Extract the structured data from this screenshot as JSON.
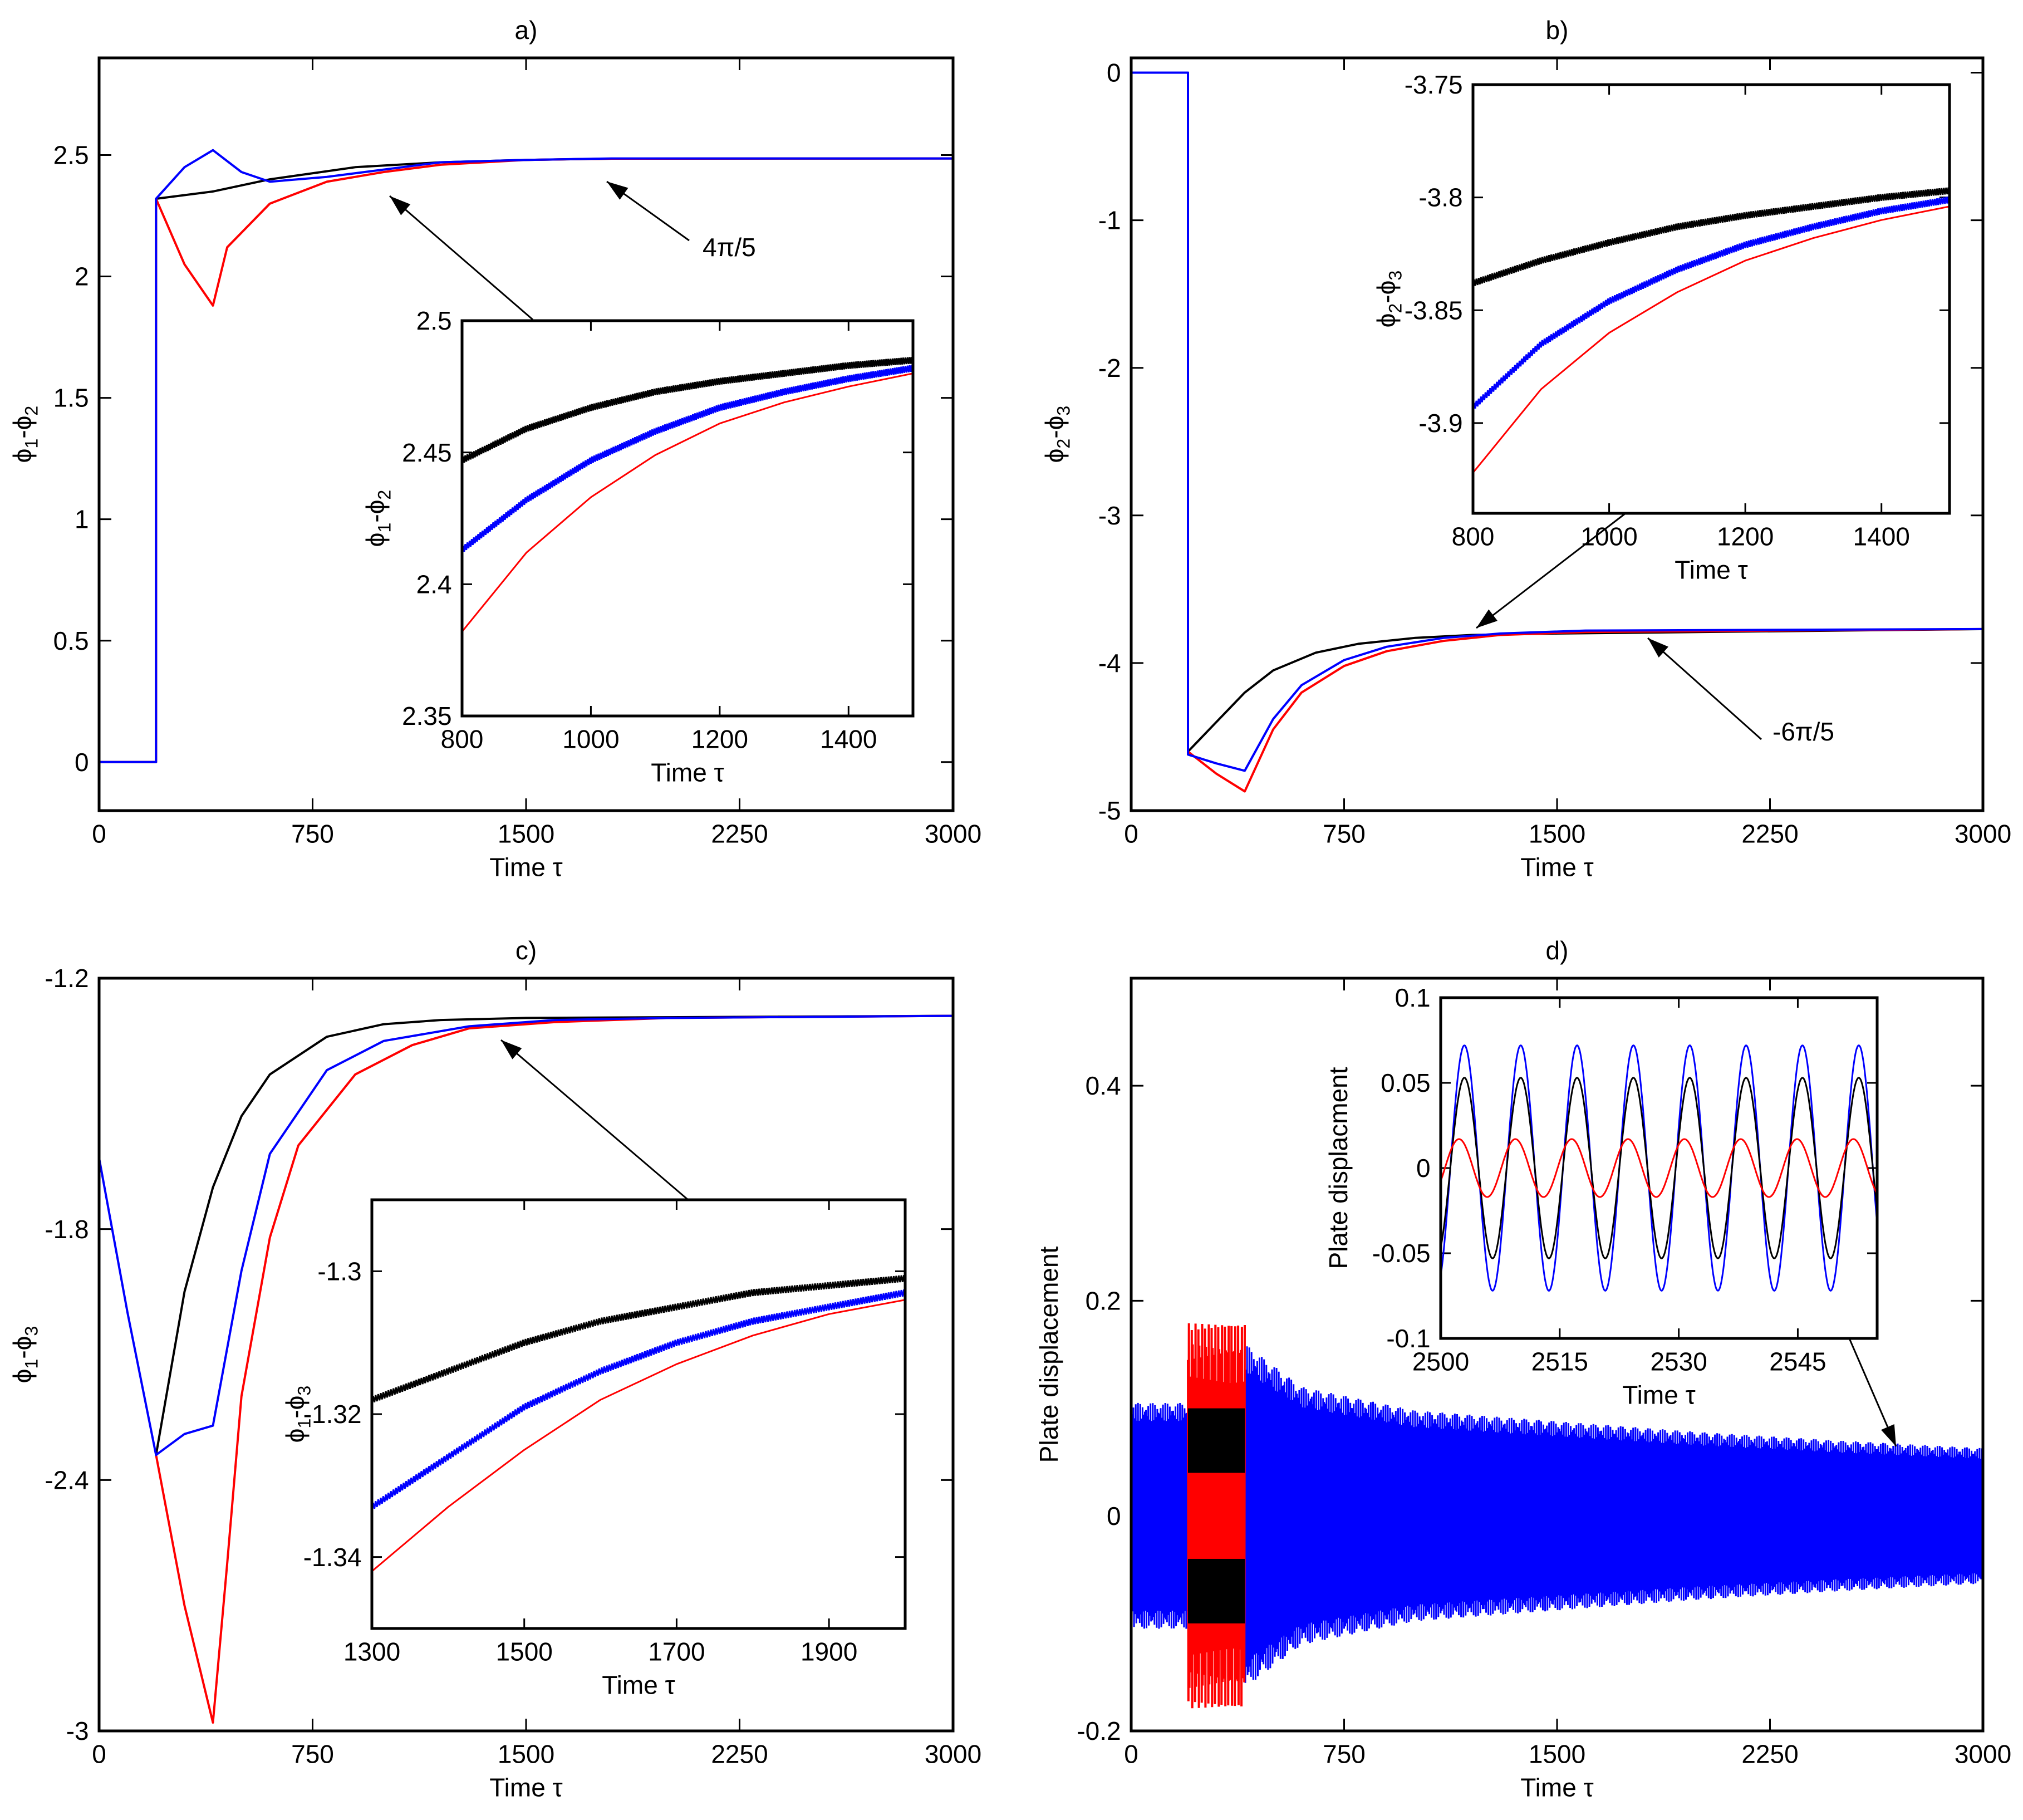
{
  "colors": {
    "black": "#000000",
    "blue": "#0000ff",
    "red": "#ff0000"
  },
  "chart_data": [
    {
      "id": "a",
      "type": "line",
      "title": "a)",
      "xlabel": "Time τ",
      "ylabel_base": "ϕ",
      "ylabel_subs": [
        "1",
        "2"
      ],
      "xlim": [
        0,
        3000
      ],
      "ylim": [
        -0.2,
        2.9
      ],
      "xticks": [
        "0",
        "750",
        "1500",
        "2250",
        "3000"
      ],
      "xtick_values": [
        0,
        750,
        1500,
        2250,
        3000
      ],
      "yticks": [
        "0",
        "0.5",
        "1",
        "1.5",
        "2",
        "2.5"
      ],
      "ytick_values": [
        0,
        0.5,
        1,
        1.5,
        2,
        2.5
      ],
      "series": [
        {
          "name": "black",
          "color": "#000000",
          "x": [
            0,
            200,
            200,
            400,
            600,
            900,
            1200,
            1500,
            1800,
            3000
          ],
          "y": [
            0,
            0,
            2.32,
            2.35,
            2.4,
            2.45,
            2.47,
            2.48,
            2.485,
            2.486
          ]
        },
        {
          "name": "red",
          "color": "#ff0000",
          "x": [
            0,
            200,
            200,
            300,
            400,
            450,
            600,
            800,
            1000,
            1200,
            1500,
            1800,
            3000
          ],
          "y": [
            0,
            0,
            2.32,
            2.05,
            1.88,
            2.12,
            2.3,
            2.39,
            2.43,
            2.46,
            2.48,
            2.485,
            2.486
          ]
        },
        {
          "name": "blue",
          "color": "#0000ff",
          "x": [
            0,
            200,
            200,
            300,
            400,
            500,
            600,
            800,
            1000,
            1200,
            1500,
            1800,
            3000
          ],
          "y": [
            0,
            0,
            2.32,
            2.45,
            2.52,
            2.43,
            2.39,
            2.41,
            2.44,
            2.47,
            2.48,
            2.486,
            2.486
          ]
        }
      ],
      "annotations": [
        {
          "text": "4π/5",
          "value": "2π/5 × 2"
        }
      ],
      "inset": {
        "xlabel": "Time τ",
        "ylabel_base": "ϕ",
        "ylabel_subs": [
          "1",
          "2"
        ],
        "xlim": [
          800,
          1500
        ],
        "ylim": [
          2.35,
          2.5
        ],
        "xticks": [
          "800",
          "1000",
          "1200",
          "1400"
        ],
        "xtick_values": [
          800,
          1000,
          1200,
          1400
        ],
        "yticks": [
          "2.35",
          "2.4",
          "2.45",
          "2.5"
        ],
        "ytick_values": [
          2.35,
          2.4,
          2.45,
          2.5
        ],
        "series": [
          {
            "name": "black",
            "color": "#000000",
            "thick": true,
            "x": [
              800,
              900,
              1000,
              1100,
              1200,
              1300,
              1400,
              1500
            ],
            "y": [
              2.447,
              2.459,
              2.467,
              2.473,
              2.477,
              2.48,
              2.483,
              2.485
            ]
          },
          {
            "name": "blue",
            "color": "#0000ff",
            "thick": true,
            "x": [
              800,
              900,
              1000,
              1100,
              1200,
              1300,
              1400,
              1500
            ],
            "y": [
              2.413,
              2.432,
              2.447,
              2.458,
              2.467,
              2.473,
              2.478,
              2.482
            ]
          },
          {
            "name": "red",
            "color": "#ff0000",
            "thick": false,
            "x": [
              800,
              900,
              1000,
              1100,
              1200,
              1300,
              1400,
              1500
            ],
            "y": [
              2.382,
              2.412,
              2.433,
              2.449,
              2.461,
              2.469,
              2.475,
              2.48
            ]
          }
        ]
      }
    },
    {
      "id": "b",
      "type": "line",
      "title": "b)",
      "xlabel": "Time τ",
      "ylabel_base": "ϕ",
      "ylabel_subs": [
        "2",
        "3"
      ],
      "xlim": [
        0,
        3000
      ],
      "ylim": [
        -5,
        0.1
      ],
      "xticks": [
        "0",
        "750",
        "1500",
        "2250",
        "3000"
      ],
      "xtick_values": [
        0,
        750,
        1500,
        2250,
        3000
      ],
      "yticks": [
        "-5",
        "-4",
        "-3",
        "-2",
        "-1",
        "0"
      ],
      "ytick_values": [
        -5,
        -4,
        -3,
        -2,
        -1,
        0
      ],
      "series": [
        {
          "name": "black",
          "color": "#000000",
          "x": [
            0,
            200,
            200,
            300,
            400,
            500,
            650,
            800,
            1000,
            1200,
            1500,
            3000
          ],
          "y": [
            0,
            0,
            -4.6,
            -4.4,
            -4.2,
            -4.05,
            -3.93,
            -3.87,
            -3.83,
            -3.81,
            -3.8,
            -3.77
          ]
        },
        {
          "name": "red",
          "color": "#ff0000",
          "x": [
            0,
            200,
            200,
            300,
            400,
            500,
            600,
            750,
            900,
            1100,
            1300,
            1600,
            3000
          ],
          "y": [
            0,
            0,
            -4.6,
            -4.75,
            -4.87,
            -4.45,
            -4.2,
            -4.02,
            -3.92,
            -3.85,
            -3.81,
            -3.79,
            -3.77
          ]
        },
        {
          "name": "blue",
          "color": "#0000ff",
          "x": [
            0,
            200,
            200,
            300,
            400,
            500,
            600,
            750,
            900,
            1100,
            1300,
            1600,
            3000
          ],
          "y": [
            0,
            0,
            -4.62,
            -4.68,
            -4.73,
            -4.38,
            -4.15,
            -3.98,
            -3.89,
            -3.83,
            -3.8,
            -3.78,
            -3.77
          ]
        }
      ],
      "annotations": [
        {
          "text": "-6π/5"
        }
      ],
      "inset": {
        "xlabel": "Time τ",
        "ylabel_base": "ϕ",
        "ylabel_subs": [
          "2",
          "3"
        ],
        "xlim": [
          800,
          1500
        ],
        "ylim": [
          -3.94,
          -3.75
        ],
        "xticks": [
          "800",
          "1000",
          "1200",
          "1400"
        ],
        "xtick_values": [
          800,
          1000,
          1200,
          1400
        ],
        "yticks": [
          "-3.9",
          "-3.85",
          "-3.8",
          "-3.75"
        ],
        "ytick_values": [
          -3.9,
          -3.85,
          -3.8,
          -3.75
        ],
        "series": [
          {
            "name": "black",
            "color": "#000000",
            "thick": true,
            "x": [
              800,
              900,
              1000,
              1100,
              1200,
              1300,
              1400,
              1500
            ],
            "y": [
              -3.838,
              -3.828,
              -3.82,
              -3.813,
              -3.808,
              -3.804,
              -3.8,
              -3.797
            ]
          },
          {
            "name": "blue",
            "color": "#0000ff",
            "thick": true,
            "x": [
              800,
              900,
              1000,
              1100,
              1200,
              1300,
              1400,
              1500
            ],
            "y": [
              -3.893,
              -3.865,
              -3.846,
              -3.832,
              -3.821,
              -3.813,
              -3.806,
              -3.801
            ]
          },
          {
            "name": "red",
            "color": "#ff0000",
            "thick": false,
            "x": [
              800,
              900,
              1000,
              1100,
              1200,
              1300,
              1400,
              1500
            ],
            "y": [
              -3.922,
              -3.885,
              -3.86,
              -3.842,
              -3.828,
              -3.818,
              -3.81,
              -3.804
            ]
          }
        ]
      }
    },
    {
      "id": "c",
      "type": "line",
      "title": "c)",
      "xlabel": "Time τ",
      "ylabel_base": "ϕ",
      "ylabel_subs": [
        "1",
        "3"
      ],
      "xlim": [
        0,
        3000
      ],
      "ylim": [
        -3,
        -1.2
      ],
      "xticks": [
        "0",
        "750",
        "1500",
        "2250",
        "3000"
      ],
      "xtick_values": [
        0,
        750,
        1500,
        2250,
        3000
      ],
      "yticks": [
        "-3",
        "-2.4",
        "-1.8",
        "-1.2"
      ],
      "ytick_values": [
        -3,
        -2.4,
        -1.8,
        -1.2
      ],
      "series": [
        {
          "name": "black",
          "color": "#000000",
          "x": [
            200,
            300,
            400,
            500,
            600,
            800,
            1000,
            1200,
            1500,
            3000
          ],
          "y": [
            -2.34,
            -1.95,
            -1.7,
            -1.53,
            -1.43,
            -1.34,
            -1.31,
            -1.3,
            -1.295,
            -1.29
          ]
        },
        {
          "name": "red",
          "color": "#ff0000",
          "x": [
            200,
            300,
            400,
            450,
            500,
            600,
            700,
            900,
            1100,
            1300,
            1600,
            2000,
            3000
          ],
          "y": [
            -2.34,
            -2.7,
            -2.98,
            -2.6,
            -2.2,
            -1.82,
            -1.6,
            -1.43,
            -1.36,
            -1.32,
            -1.305,
            -1.295,
            -1.29
          ]
        },
        {
          "name": "blue",
          "color": "#0000ff",
          "x": [
            0,
            100,
            200,
            300,
            400,
            500,
            600,
            800,
            1000,
            1300,
            1600,
            2000,
            3000
          ],
          "y": [
            -1.63,
            -2.0,
            -2.34,
            -2.29,
            -2.27,
            -1.9,
            -1.62,
            -1.42,
            -1.35,
            -1.315,
            -1.3,
            -1.295,
            -1.29
          ]
        }
      ],
      "annotations": [],
      "inset": {
        "xlabel": "Time τ",
        "ylabel_base": "ϕ",
        "ylabel_subs": [
          "1",
          "3"
        ],
        "xlim": [
          1300,
          2000
        ],
        "ylim": [
          -1.35,
          -1.29
        ],
        "xticks": [
          "1300",
          "1500",
          "1700",
          "1900"
        ],
        "xtick_values": [
          1300,
          1500,
          1700,
          1900
        ],
        "yticks": [
          "-1.34",
          "-1.32",
          "-1.3"
        ],
        "ytick_values": [
          -1.34,
          -1.32,
          -1.3
        ],
        "series": [
          {
            "name": "black",
            "color": "#000000",
            "thick": true,
            "x": [
              1300,
              1400,
              1500,
              1600,
              1700,
              1800,
              1900,
              2000
            ],
            "y": [
              -1.318,
              -1.314,
              -1.31,
              -1.307,
              -1.305,
              -1.303,
              -1.302,
              -1.301
            ]
          },
          {
            "name": "blue",
            "color": "#0000ff",
            "thick": true,
            "x": [
              1300,
              1400,
              1500,
              1600,
              1700,
              1800,
              1900,
              2000
            ],
            "y": [
              -1.333,
              -1.326,
              -1.319,
              -1.314,
              -1.31,
              -1.307,
              -1.305,
              -1.303
            ]
          },
          {
            "name": "red",
            "color": "#ff0000",
            "thick": false,
            "x": [
              1300,
              1400,
              1500,
              1600,
              1700,
              1800,
              1900,
              2000
            ],
            "y": [
              -1.342,
              -1.333,
              -1.325,
              -1.318,
              -1.313,
              -1.309,
              -1.306,
              -1.304
            ]
          }
        ]
      }
    },
    {
      "id": "d",
      "type": "line",
      "title": "d)",
      "xlabel": "Time τ",
      "ylabel": "Plate displacement",
      "xlim": [
        0,
        3000
      ],
      "ylim": [
        -0.2,
        0.5
      ],
      "xticks": [
        "0",
        "750",
        "1500",
        "2250",
        "3000"
      ],
      "xtick_values": [
        0,
        750,
        1500,
        2250,
        3000
      ],
      "yticks": [
        "-0.2",
        "0",
        "0.2",
        "0.4"
      ],
      "ytick_values": [
        -0.2,
        0,
        0.2,
        0.4
      ],
      "envelope": {
        "blue": {
          "x": [
            0,
            200,
            400,
            400,
            600,
            1000,
            1500,
            2000,
            2500,
            3000
          ],
          "amp": [
            0.105,
            0.105,
            0.11,
            0.16,
            0.12,
            0.098,
            0.088,
            0.078,
            0.07,
            0.063
          ]
        },
        "red_burst": {
          "x_range": [
            200,
            400
          ],
          "amp": [
            0.11,
            0.18
          ]
        },
        "black_burst": {
          "x_range": [
            200,
            400
          ],
          "amp_inner": 0.04,
          "amp_outer": 0.1
        }
      },
      "annotations": [],
      "inset": {
        "xlabel": "Time τ",
        "ylabel": "Plate displacment",
        "xlim": [
          2500,
          2555
        ],
        "ylim": [
          -0.1,
          0.1
        ],
        "xticks": [
          "2500",
          "2515",
          "2530",
          "2545"
        ],
        "xtick_values": [
          2500,
          2515,
          2530,
          2545
        ],
        "yticks": [
          "-0.1",
          "-0.05",
          "0",
          "0.05",
          "0.1"
        ],
        "ytick_values": [
          -0.1,
          -0.05,
          0,
          0.05,
          0.1
        ],
        "sines": [
          {
            "name": "blue",
            "color": "#0000ff",
            "amp": 0.072,
            "period": 7.1,
            "phase": 0
          },
          {
            "name": "black",
            "color": "#000000",
            "amp": 0.053,
            "period": 7.1,
            "phase": 0
          },
          {
            "name": "red",
            "color": "#ff0000",
            "amp": 0.017,
            "period": 7.1,
            "phase": 0.6
          }
        ]
      }
    }
  ]
}
